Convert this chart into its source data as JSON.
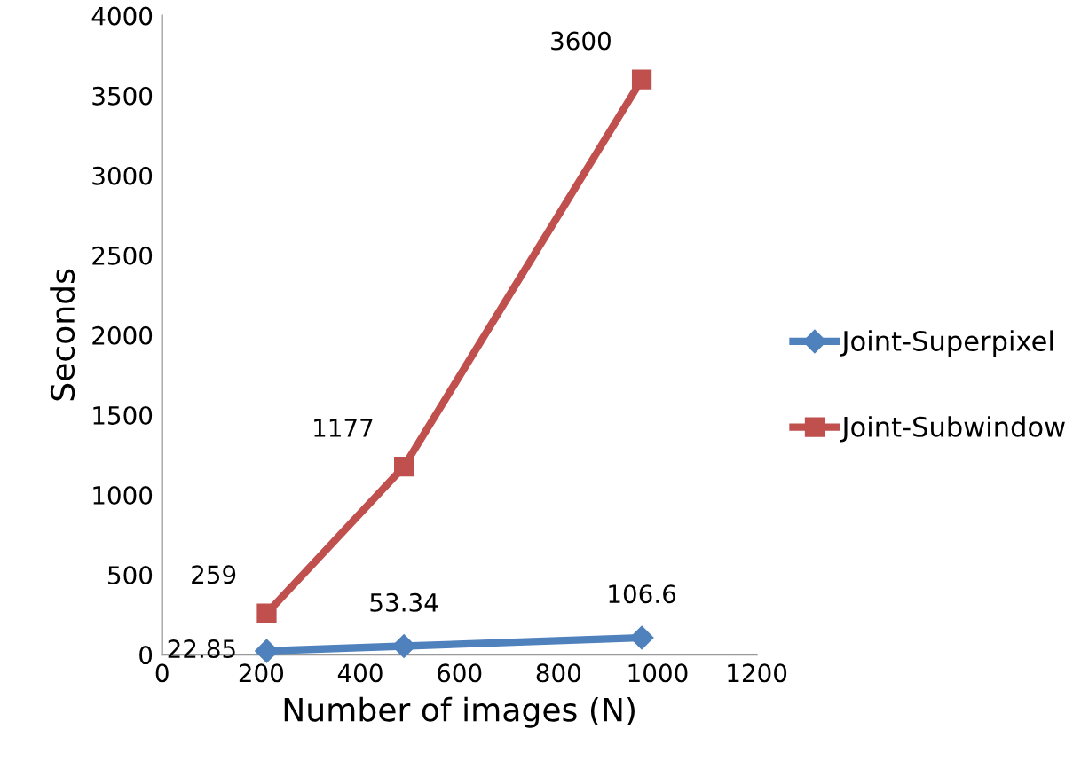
{
  "chart_data": {
    "type": "line",
    "xlabel": "Number of images (N)",
    "ylabel": "Seconds",
    "xlim": [
      0,
      1200
    ],
    "xticks": [
      0,
      200,
      400,
      600,
      800,
      1000,
      1200
    ],
    "ylim": [
      0,
      4000
    ],
    "yticks": [
      0,
      500,
      1000,
      1500,
      2000,
      2500,
      3000,
      3500,
      4000
    ],
    "series": [
      {
        "name": "Joint-Superpixel",
        "color": "#4f81bd",
        "marker": "diamond",
        "x": [
          211,
          488,
          968
        ],
        "values": [
          22.85,
          53.34,
          106.6
        ]
      },
      {
        "name": "Joint-Subwindow",
        "color": "#c0504d",
        "marker": "square",
        "x": [
          211,
          488,
          968
        ],
        "values": [
          259,
          1177,
          3600
        ]
      }
    ],
    "data_labels": true,
    "legend": "right",
    "grid": false
  }
}
